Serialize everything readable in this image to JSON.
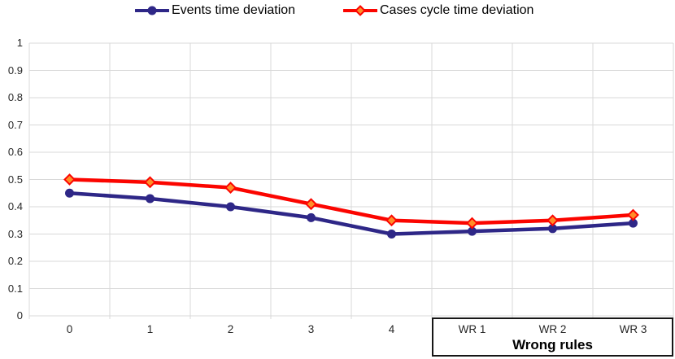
{
  "colors": {
    "events_line": "#2E2787",
    "cases_line": "#FB0500",
    "cases_marker_fill": "#FF8E28",
    "gridline": "#D9D9D9",
    "axis_text": "#262626",
    "box_border": "#161616"
  },
  "chart_data": {
    "type": "line",
    "title": "",
    "xlabel": "",
    "ylabel": "",
    "categories": [
      "0",
      "1",
      "2",
      "3",
      "4",
      "WR 1",
      "WR 2",
      "WR 3"
    ],
    "series": [
      {
        "name": "Events time deviation",
        "marker": "circle",
        "color": "#2E2787",
        "values": [
          0.45,
          0.43,
          0.4,
          0.36,
          0.3,
          0.31,
          0.32,
          0.34
        ]
      },
      {
        "name": "Cases cycle time deviation",
        "marker": "diamond",
        "color": "#FB0500",
        "marker_fill": "#FF8E28",
        "values": [
          0.5,
          0.49,
          0.47,
          0.41,
          0.35,
          0.34,
          0.35,
          0.37
        ]
      }
    ],
    "ylim": [
      0,
      1
    ],
    "ytick_labels": [
      "0",
      "0.1",
      "0.2",
      "0.3",
      "0.4",
      "0.5",
      "0.6",
      "0.7",
      "0.8",
      "0.9",
      "1"
    ],
    "grid": true,
    "legend_position": "top",
    "annotation_box": {
      "label": "Wrong rules",
      "covers_categories": [
        "WR 1",
        "WR 2",
        "WR 3"
      ]
    }
  }
}
